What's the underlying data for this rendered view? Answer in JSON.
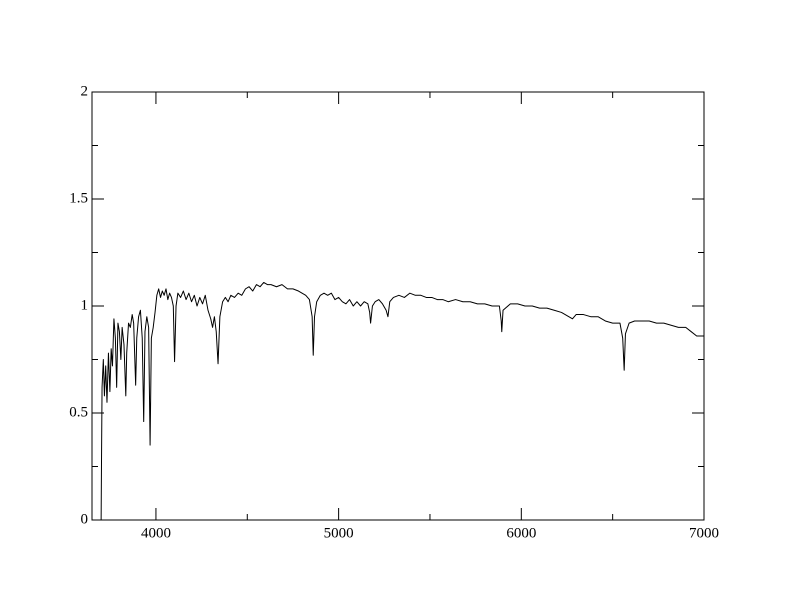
{
  "chart_data": {
    "type": "line",
    "x": [
      3700,
      3702,
      3705,
      3712,
      3718,
      3725,
      3732,
      3740,
      3748,
      3755,
      3762,
      3770,
      3778,
      3785,
      3792,
      3800,
      3808,
      3815,
      3825,
      3835,
      3840,
      3850,
      3860,
      3870,
      3878,
      3889,
      3895,
      3905,
      3915,
      3925,
      3933,
      3940,
      3950,
      3960,
      3968,
      3975,
      3985,
      3995,
      4005,
      4015,
      4025,
      4035,
      4045,
      4055,
      4065,
      4075,
      4085,
      4095,
      4102,
      4110,
      4120,
      4135,
      4150,
      4165,
      4180,
      4195,
      4210,
      4225,
      4240,
      4255,
      4270,
      4285,
      4300,
      4310,
      4320,
      4330,
      4340,
      4350,
      4365,
      4380,
      4395,
      4410,
      4430,
      4450,
      4470,
      4490,
      4510,
      4530,
      4550,
      4570,
      4590,
      4610,
      4630,
      4660,
      4690,
      4720,
      4750,
      4780,
      4800,
      4820,
      4840,
      4855,
      4861,
      4868,
      4880,
      4900,
      4920,
      4940,
      4960,
      4980,
      5000,
      5020,
      5040,
      5060,
      5080,
      5100,
      5120,
      5140,
      5160,
      5170,
      5175,
      5185,
      5200,
      5220,
      5240,
      5260,
      5270,
      5280,
      5300,
      5330,
      5360,
      5390,
      5420,
      5450,
      5480,
      5510,
      5540,
      5570,
      5600,
      5640,
      5680,
      5720,
      5760,
      5800,
      5840,
      5880,
      5890,
      5893,
      5900,
      5940,
      5980,
      6020,
      6060,
      6100,
      6140,
      6180,
      6220,
      6260,
      6280,
      6300,
      6340,
      6380,
      6420,
      6460,
      6500,
      6540,
      6555,
      6563,
      6570,
      6590,
      6620,
      6660,
      6700,
      6740,
      6780,
      6820,
      6860,
      6900,
      6930,
      6960,
      6980,
      7000
    ],
    "y": [
      0,
      0.27,
      0.62,
      0.75,
      0.58,
      0.72,
      0.55,
      0.78,
      0.6,
      0.8,
      0.72,
      0.94,
      0.85,
      0.62,
      0.92,
      0.88,
      0.75,
      0.9,
      0.82,
      0.58,
      0.78,
      0.92,
      0.9,
      0.96,
      0.92,
      0.63,
      0.85,
      0.95,
      0.98,
      0.85,
      0.46,
      0.88,
      0.95,
      0.9,
      0.35,
      0.85,
      0.9,
      0.97,
      1.05,
      1.08,
      1.04,
      1.07,
      1.05,
      1.08,
      1.03,
      1.06,
      1.04,
      1.0,
      0.74,
      1.0,
      1.06,
      1.04,
      1.07,
      1.03,
      1.06,
      1.02,
      1.05,
      1.0,
      1.04,
      1.01,
      1.05,
      0.98,
      0.94,
      0.9,
      0.95,
      0.88,
      0.73,
      0.95,
      1.02,
      1.04,
      1.02,
      1.05,
      1.04,
      1.06,
      1.05,
      1.08,
      1.09,
      1.07,
      1.1,
      1.09,
      1.11,
      1.1,
      1.1,
      1.09,
      1.1,
      1.08,
      1.08,
      1.07,
      1.06,
      1.05,
      1.03,
      0.95,
      0.77,
      0.95,
      1.02,
      1.05,
      1.06,
      1.05,
      1.06,
      1.03,
      1.04,
      1.02,
      1.01,
      1.03,
      1.0,
      1.02,
      1.0,
      1.02,
      1.01,
      0.97,
      0.92,
      1.0,
      1.02,
      1.03,
      1.01,
      0.98,
      0.95,
      1.02,
      1.04,
      1.05,
      1.04,
      1.06,
      1.05,
      1.05,
      1.04,
      1.04,
      1.03,
      1.03,
      1.02,
      1.03,
      1.02,
      1.02,
      1.01,
      1.01,
      1.0,
      1.0,
      0.93,
      0.88,
      0.98,
      1.01,
      1.01,
      1.0,
      1.0,
      0.99,
      0.99,
      0.98,
      0.97,
      0.95,
      0.94,
      0.96,
      0.96,
      0.95,
      0.95,
      0.93,
      0.92,
      0.92,
      0.85,
      0.7,
      0.87,
      0.92,
      0.93,
      0.93,
      0.93,
      0.92,
      0.92,
      0.91,
      0.9,
      0.9,
      0.88,
      0.86,
      0.86,
      0.86
    ],
    "color": "#000000",
    "xlim": [
      3650,
      7000
    ],
    "ylim": [
      0,
      2
    ],
    "xticks": [
      4000,
      5000,
      6000,
      7000
    ],
    "yticks": [
      0,
      0.5,
      1,
      1.5,
      2
    ],
    "xminorticks": [
      4500,
      5500,
      6500
    ],
    "yminorticks": [
      0.25,
      0.75,
      1.25,
      1.75
    ]
  }
}
